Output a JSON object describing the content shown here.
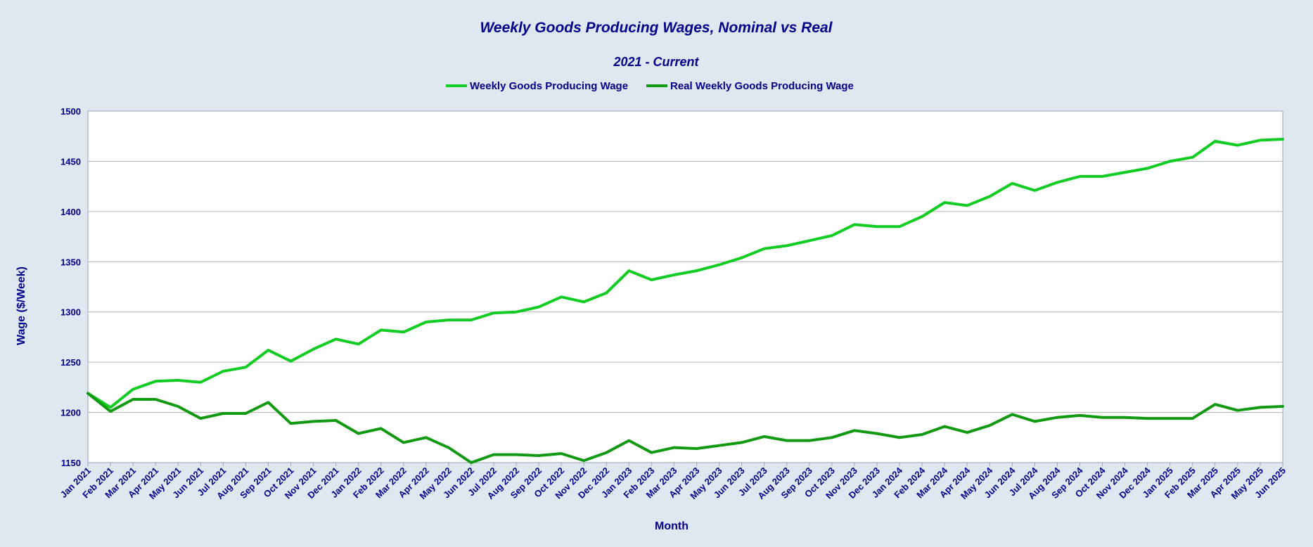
{
  "chart_data": {
    "type": "line",
    "title": "Weekly Goods Producing Wages, Nominal vs Real",
    "subtitle": "2021 - Current",
    "xlabel": "Month",
    "ylabel": "Wage ($/Week)",
    "ylim": [
      1150,
      1500
    ],
    "yticks": [
      1150,
      1200,
      1250,
      1300,
      1350,
      1400,
      1450,
      1500
    ],
    "grid": "horizontal",
    "legend_position": "top-center",
    "colors": {
      "nominal": "#11cc22",
      "real": "#119911",
      "grid": "#b0b0b0",
      "plot_bg": "#ffffff",
      "page_bg": "#dfe7f0"
    },
    "x": [
      "Jan 2021",
      "Feb 2021",
      "Mar 2021",
      "Apr 2021",
      "May 2021",
      "Jun 2021",
      "Jul 2021",
      "Aug 2021",
      "Sep 2021",
      "Oct 2021",
      "Nov 2021",
      "Dec 2021",
      "Jan 2022",
      "Feb 2022",
      "Mar 2022",
      "Apr 2022",
      "May 2022",
      "Jun 2022",
      "Jul 2022",
      "Aug 2022",
      "Sep 2022",
      "Oct 2022",
      "Nov 2022",
      "Dec 2022",
      "Jan 2023",
      "Feb 2023",
      "Mar 2023",
      "Apr 2023",
      "May 2023",
      "Jun 2023",
      "Jul 2023",
      "Aug 2023",
      "Sep 2023",
      "Oct 2023",
      "Nov 2023",
      "Dec 2023",
      "Jan 2024",
      "Feb 2024",
      "Mar 2024",
      "Apr 2024",
      "May 2024",
      "Jun 2024",
      "Jul 2024",
      "Aug 2024",
      "Sep 2024",
      "Oct 2024",
      "Nov 2024",
      "Dec 2024",
      "Jan 2025",
      "Feb 2025",
      "Mar 2025",
      "Apr 2025",
      "May 2025",
      "Jun 2025"
    ],
    "series": [
      {
        "name": "Weekly Goods Producing Wage",
        "key": "nominal",
        "values": [
          1219,
          1205,
          1223,
          1231,
          1232,
          1230,
          1241,
          1245,
          1262,
          1251,
          1263,
          1273,
          1268,
          1282,
          1280,
          1290,
          1292,
          1292,
          1299,
          1300,
          1305,
          1315,
          1310,
          1319,
          1341,
          1332,
          1337,
          1341,
          1347,
          1354,
          1363,
          1366,
          1371,
          1376,
          1387,
          1385,
          1385,
          1395,
          1409,
          1406,
          1415,
          1428,
          1421,
          1429,
          1435,
          1435,
          1439,
          1443,
          1450,
          1454,
          1470,
          1466,
          1471,
          1472
        ]
      },
      {
        "name": "Real Weekly Goods Producing Wage",
        "key": "real",
        "values": [
          1219,
          1201,
          1213,
          1213,
          1206,
          1194,
          1199,
          1199,
          1210,
          1189,
          1191,
          1192,
          1179,
          1184,
          1170,
          1175,
          1165,
          1150,
          1158,
          1158,
          1157,
          1159,
          1152,
          1160,
          1172,
          1160,
          1165,
          1164,
          1167,
          1170,
          1176,
          1172,
          1172,
          1175,
          1182,
          1179,
          1175,
          1178,
          1186,
          1180,
          1187,
          1198,
          1191,
          1195,
          1197,
          1195,
          1195,
          1194,
          1194,
          1194,
          1208,
          1202,
          1205,
          1206
        ]
      }
    ]
  }
}
